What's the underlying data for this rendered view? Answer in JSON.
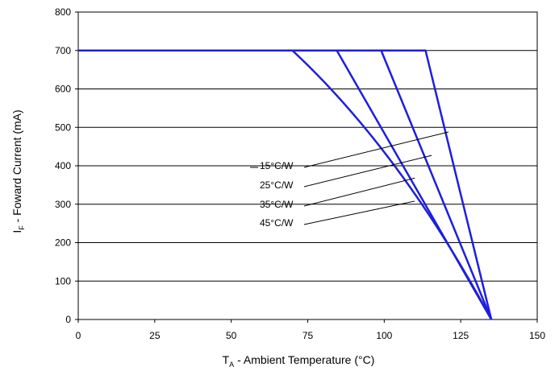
{
  "chart_data": {
    "type": "line",
    "xlabel": {
      "main": "T",
      "sub": "A",
      "rest": " - Ambient Temperature (°C)"
    },
    "ylabel": {
      "main": "I",
      "sub": "F",
      "rest": " - Foward Current (mA)"
    },
    "xlim": [
      0,
      150
    ],
    "ylim": [
      0,
      800
    ],
    "xticks": [
      0,
      25,
      50,
      75,
      100,
      125,
      150
    ],
    "yticks": [
      0,
      100,
      200,
      300,
      400,
      500,
      600,
      700,
      800
    ],
    "grid": "horizontal",
    "line_color": "#1f1fd6",
    "series": [
      {
        "name": "15°C/W",
        "x": [
          0,
          113.5,
          135
        ],
        "y": [
          700,
          700,
          0
        ]
      },
      {
        "name": "25°C/W",
        "x": [
          0,
          99,
          135
        ],
        "y": [
          700,
          700,
          0
        ]
      },
      {
        "name": "35°C/W",
        "x": [
          0,
          84.5,
          135
        ],
        "y": [
          700,
          700,
          0
        ]
      },
      {
        "name": "45°C/W",
        "x": [
          0,
          70,
          135
        ],
        "y": [
          700,
          700,
          0
        ],
        "curved": true
      }
    ],
    "annotations": [
      {
        "text": "15°C/W",
        "target": [
          121,
          488
        ]
      },
      {
        "text": "25°C/W",
        "target": [
          115.5,
          427
        ]
      },
      {
        "text": "35°C/W",
        "target": [
          110,
          368
        ]
      },
      {
        "text": "45°C/W",
        "target": [
          110,
          308
        ]
      }
    ]
  }
}
